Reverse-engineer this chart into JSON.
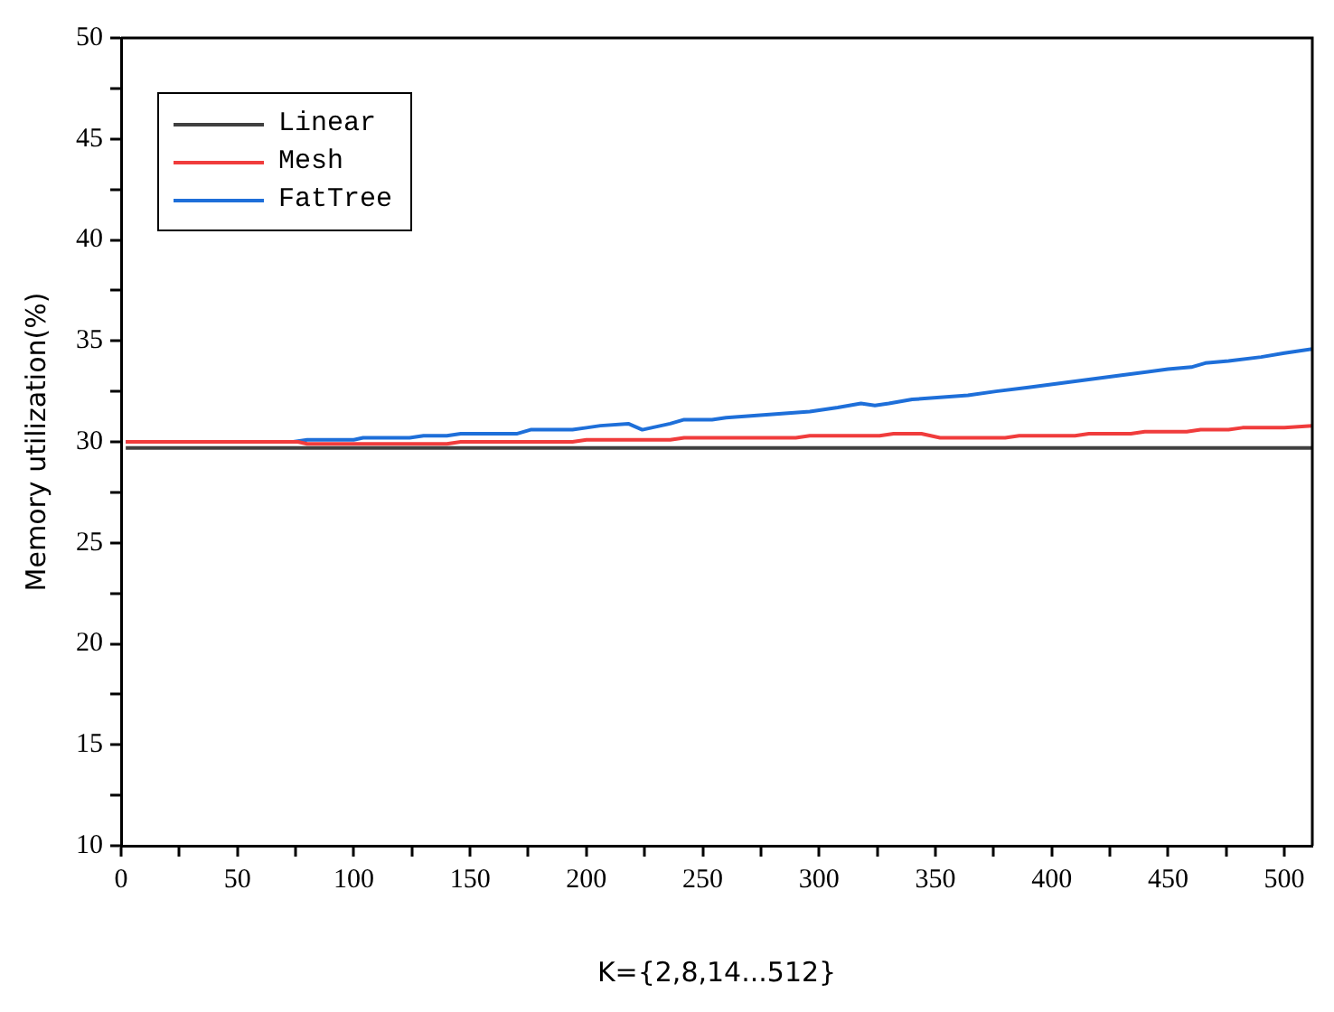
{
  "chart_data": {
    "type": "line",
    "xlabel": "K={2,8,14...512}",
    "ylabel": "Memory utilization(%)",
    "xlim": [
      0,
      512
    ],
    "ylim": [
      10,
      50
    ],
    "xticks": [
      0,
      {
        "value": 25,
        "label": null
      },
      50,
      {
        "value": 75,
        "label": null
      },
      100,
      {
        "value": 125,
        "label": null
      },
      150,
      {
        "value": 175,
        "label": null
      },
      200,
      {
        "value": 225,
        "label": null
      },
      250,
      {
        "value": 275,
        "label": null
      },
      300,
      {
        "value": 325,
        "label": null
      },
      350,
      {
        "value": 375,
        "label": null
      },
      400,
      {
        "value": 425,
        "label": null
      },
      450,
      {
        "value": 475,
        "label": null
      },
      500
    ],
    "yticks": [
      10,
      {
        "value": 12.5,
        "label": null
      },
      15,
      {
        "value": 17.5,
        "label": null
      },
      20,
      {
        "value": 22.5,
        "label": null
      },
      25,
      {
        "value": 27.5,
        "label": null
      },
      30,
      {
        "value": 32.5,
        "label": null
      },
      35,
      {
        "value": 37.5,
        "label": null
      },
      40,
      {
        "value": 42.5,
        "label": null
      },
      45,
      {
        "value": 47.5,
        "label": null
      },
      50
    ],
    "grid": false,
    "legend": "top left",
    "marker": "none",
    "line_style": "solid",
    "series": [
      {
        "name": "Linear",
        "color": "#404040",
        "x": [
          2,
          512
        ],
        "values": [
          29.7,
          29.7
        ]
      },
      {
        "name": "Mesh",
        "color": "#f03c3c",
        "x": [
          2,
          76,
          80,
          140,
          146,
          194,
          200,
          236,
          242,
          290,
          296,
          326,
          332,
          344,
          352,
          380,
          386,
          410,
          416,
          434,
          440,
          458,
          464,
          476,
          482,
          500,
          512
        ],
        "values": [
          30.0,
          30.0,
          29.9,
          29.9,
          30.0,
          30.0,
          30.1,
          30.1,
          30.2,
          30.2,
          30.3,
          30.3,
          30.4,
          30.4,
          30.2,
          30.2,
          30.3,
          30.3,
          30.4,
          30.4,
          30.5,
          30.5,
          30.6,
          30.6,
          30.7,
          30.7,
          30.8
        ]
      },
      {
        "name": "FatTree",
        "color": "#1e6fd9",
        "x": [
          2,
          74,
          80,
          100,
          104,
          124,
          130,
          140,
          146,
          170,
          176,
          194,
          200,
          206,
          218,
          224,
          236,
          242,
          254,
          260,
          272,
          284,
          296,
          308,
          318,
          324,
          330,
          340,
          352,
          364,
          376,
          390,
          410,
          430,
          450,
          460,
          466,
          476,
          490,
          500,
          512
        ],
        "values": [
          30.0,
          30.0,
          30.1,
          30.1,
          30.2,
          30.2,
          30.3,
          30.3,
          30.4,
          30.4,
          30.6,
          30.6,
          30.7,
          30.8,
          30.9,
          30.6,
          30.9,
          31.1,
          31.1,
          31.2,
          31.3,
          31.4,
          31.5,
          31.7,
          31.9,
          31.8,
          31.9,
          32.1,
          32.2,
          32.3,
          32.5,
          32.7,
          33.0,
          33.3,
          33.6,
          33.7,
          33.9,
          34.0,
          34.2,
          34.4,
          34.6
        ]
      }
    ]
  }
}
